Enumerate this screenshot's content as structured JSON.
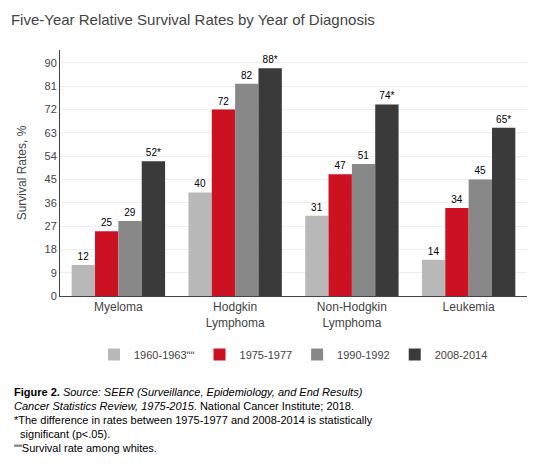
{
  "chart_data": {
    "type": "bar",
    "title": "Five-Year Relative Survival Rates by Year of Diagnosis",
    "ylabel": "Survival Rates, %",
    "categories": [
      "Myeloma",
      "Hodgkin\nLymphoma",
      "Non-Hodgkin\nLymphoma",
      "Leukemia"
    ],
    "series": [
      {
        "name": "1960-1963ʺʺ",
        "color": "#b8b8b8",
        "values": [
          12,
          40,
          31,
          14
        ],
        "value_labels": [
          "12",
          "40",
          "31",
          "14"
        ]
      },
      {
        "name": "1975-1977",
        "color": "#cc1122",
        "values": [
          25,
          72,
          47,
          34
        ],
        "value_labels": [
          "25",
          "72",
          "47",
          "34"
        ]
      },
      {
        "name": "1990-1992",
        "color": "#888888",
        "values": [
          29,
          82,
          51,
          45
        ],
        "value_labels": [
          "29",
          "82",
          "51",
          "45"
        ]
      },
      {
        "name": "2008-2014",
        "color": "#3a3a3a",
        "values": [
          52,
          88,
          74,
          65
        ],
        "value_labels": [
          "52*",
          "88*",
          "74*",
          "65*"
        ]
      }
    ],
    "ylim": [
      0,
      95
    ],
    "yticks": [
      0,
      9,
      18,
      27,
      36,
      45,
      54,
      63,
      72,
      81,
      90
    ],
    "grid": true,
    "data_labels": true,
    "legend": "bottom",
    "annotations": [
      "Figure 2.",
      "Source: SEER (Surveillance, Epidemiology, and End Results)",
      "Cancer Statistics Review, 1975-2015",
      ". National Cancer Institute; 2018.",
      "*The difference in rates between 1975-1977 and 2008-2014 is statistically",
      "  significant (p<.05).",
      "ʺʺSurvival rate among whites."
    ]
  }
}
